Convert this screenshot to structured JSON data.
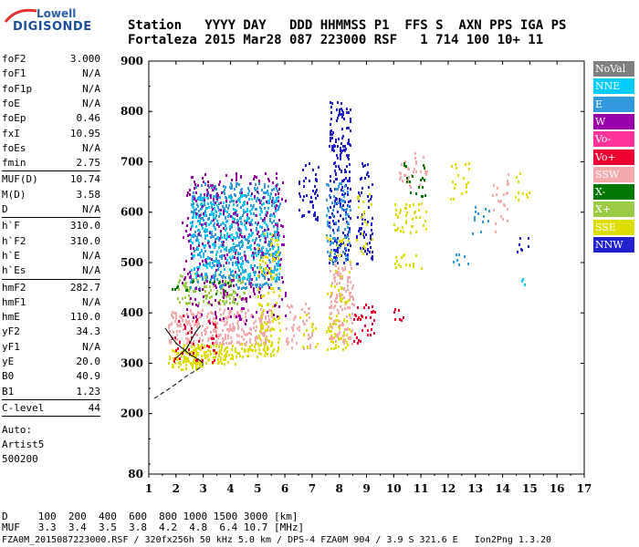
{
  "logo": {
    "line1": "Lowell",
    "line2": "DIGISONDE"
  },
  "header": {
    "row1": "Station   YYYY DAY   DDD HHMMSS P1  FFS S  AXN PPS IGA PS",
    "row2": "Fortaleza 2015 Mar28 087 223000 RSF   1 714 100 10+ 11"
  },
  "params": [
    {
      "k": "foF2",
      "v": "3.000"
    },
    {
      "k": "foF1",
      "v": "N/A"
    },
    {
      "k": "foF1p",
      "v": "N/A"
    },
    {
      "k": "foE",
      "v": "N/A"
    },
    {
      "k": "foEp",
      "v": "0.46"
    },
    {
      "k": "fxI",
      "v": "10.95"
    },
    {
      "k": "foEs",
      "v": "N/A"
    },
    {
      "k": "fmin",
      "v": "2.75"
    },
    {
      "k": "MUF(D)",
      "v": "10.74"
    },
    {
      "k": "M(D)",
      "v": "3.58"
    },
    {
      "k": "D",
      "v": "N/A"
    },
    {
      "k": "h`F",
      "v": "310.0"
    },
    {
      "k": "h`F2",
      "v": "310.0"
    },
    {
      "k": "h`E",
      "v": "N/A"
    },
    {
      "k": "h`Es",
      "v": "N/A"
    },
    {
      "k": "hmF2",
      "v": "282.7"
    },
    {
      "k": "hmF1",
      "v": "N/A"
    },
    {
      "k": "hmE",
      "v": "110.0"
    },
    {
      "k": "yF2",
      "v": "34.3"
    },
    {
      "k": "yF1",
      "v": "N/A"
    },
    {
      "k": "yE",
      "v": "20.0"
    },
    {
      "k": "B0",
      "v": "40.9"
    },
    {
      "k": "B1",
      "v": "1.23"
    },
    {
      "k": "C-level",
      "v": "44"
    }
  ],
  "auto": {
    "l1": "Auto:",
    "l2": "Artist5",
    "l3": "500200"
  },
  "footer": {
    "d_row": "D     100  200  400  600  800 1000 1500 3000 [km]",
    "muf_row": "MUF   3.3  3.4  3.5  3.8  4.2  4.8  6.4 10.7 [MHz]",
    "file_row": "FZA0M_2015087223000.RSF / 320fx256h 50 kHz 5.0 km / DPS-4 FZA0M 904 / 3.9 S 321.6 E   Ion2Png 1.3.20"
  },
  "legend": [
    {
      "label": "NoVal",
      "color": "#808080"
    },
    {
      "label": "NNE",
      "color": "#00ccff"
    },
    {
      "label": "E",
      "color": "#3399dd"
    },
    {
      "label": "W",
      "color": "#9900aa"
    },
    {
      "label": "Vo-",
      "color": "#ff3399"
    },
    {
      "label": "Vo+",
      "color": "#ee0033"
    },
    {
      "label": "SSW",
      "color": "#f4aaaa"
    },
    {
      "label": "X-",
      "color": "#007700"
    },
    {
      "label": "X+",
      "color": "#99cc44"
    },
    {
      "label": "SSE",
      "color": "#dddd00"
    },
    {
      "label": "NNW",
      "color": "#2222cc"
    }
  ],
  "chart_data": {
    "type": "scatter",
    "xlim": [
      1,
      17
    ],
    "ylim": [
      80,
      900
    ],
    "x_ticks": [
      1,
      2,
      3,
      4,
      5,
      6,
      7,
      8,
      9,
      10,
      11,
      12,
      13,
      14,
      15,
      16,
      17
    ],
    "y_ticks": [
      80,
      200,
      300,
      400,
      500,
      600,
      700,
      800,
      900
    ],
    "clusters": [
      {
        "x": [
          1.7,
          3.2
        ],
        "y": [
          290,
          330
        ],
        "color": "#dddd00",
        "density": 5
      },
      {
        "x": [
          2.2,
          4.2
        ],
        "y": [
          300,
          340
        ],
        "color": "#dddd00",
        "density": 5
      },
      {
        "x": [
          4.2,
          5.6
        ],
        "y": [
          315,
          345
        ],
        "color": "#dddd00",
        "density": 4
      },
      {
        "x": [
          1.7,
          5.5
        ],
        "y": [
          340,
          410
        ],
        "color": "#f4aaaa",
        "density": 4
      },
      {
        "x": [
          1.8,
          3.5
        ],
        "y": [
          300,
          400
        ],
        "color": "#ee0033",
        "density": 1
      },
      {
        "x": [
          2.0,
          4.5
        ],
        "y": [
          420,
          480
        ],
        "color": "#99cc44",
        "density": 3
      },
      {
        "x": [
          1.8,
          4.0
        ],
        "y": [
          440,
          470
        ],
        "color": "#007700",
        "density": 1
      },
      {
        "x": [
          2.5,
          5.8
        ],
        "y": [
          450,
          660
        ],
        "color": "#3399dd",
        "density": 3
      },
      {
        "x": [
          2.5,
          5.8
        ],
        "y": [
          470,
          640
        ],
        "color": "#00ccff",
        "density": 2
      },
      {
        "x": [
          2.2,
          6.0
        ],
        "y": [
          380,
          680
        ],
        "color": "#9900aa",
        "density": 1
      },
      {
        "x": [
          5.0,
          5.8
        ],
        "y": [
          320,
          560
        ],
        "color": "#dddd00",
        "density": 2
      },
      {
        "x": [
          6.0,
          7.0
        ],
        "y": [
          330,
          420
        ],
        "color": "#f4aaaa",
        "density": 2
      },
      {
        "x": [
          6.5,
          7.2
        ],
        "y": [
          580,
          700
        ],
        "color": "#2222cc",
        "density": 2
      },
      {
        "x": [
          6.5,
          7.2
        ],
        "y": [
          330,
          400
        ],
        "color": "#dddd00",
        "density": 1
      },
      {
        "x": [
          7.5,
          8.4
        ],
        "y": [
          330,
          400
        ],
        "color": "#dddd00",
        "density": 3
      },
      {
        "x": [
          7.6,
          8.5
        ],
        "y": [
          340,
          500
        ],
        "color": "#f4aaaa",
        "density": 3
      },
      {
        "x": [
          7.6,
          8.4
        ],
        "y": [
          500,
          820
        ],
        "color": "#2222cc",
        "density": 3
      },
      {
        "x": [
          7.5,
          8.4
        ],
        "y": [
          500,
          660
        ],
        "color": "#3399dd",
        "density": 2
      },
      {
        "x": [
          7.5,
          8.4
        ],
        "y": [
          420,
          560
        ],
        "color": "#dddd00",
        "density": 1
      },
      {
        "x": [
          8.5,
          9.3
        ],
        "y": [
          340,
          420
        ],
        "color": "#ee0033",
        "density": 2
      },
      {
        "x": [
          8.6,
          9.2
        ],
        "y": [
          500,
          700
        ],
        "color": "#2222cc",
        "density": 2
      },
      {
        "x": [
          8.6,
          9.2
        ],
        "y": [
          520,
          640
        ],
        "color": "#dddd00",
        "density": 1
      },
      {
        "x": [
          10.0,
          10.6
        ],
        "y": [
          370,
          410
        ],
        "color": "#ee0033",
        "density": 1
      },
      {
        "x": [
          10.0,
          11.0
        ],
        "y": [
          490,
          520
        ],
        "color": "#dddd00",
        "density": 2
      },
      {
        "x": [
          10.0,
          11.2
        ],
        "y": [
          560,
          620
        ],
        "color": "#dddd00",
        "density": 2
      },
      {
        "x": [
          10.2,
          11.2
        ],
        "y": [
          650,
          720
        ],
        "color": "#f4aaaa",
        "density": 2
      },
      {
        "x": [
          10.2,
          11.2
        ],
        "y": [
          630,
          700
        ],
        "color": "#007700",
        "density": 1
      },
      {
        "x": [
          12.0,
          12.8
        ],
        "y": [
          490,
          520
        ],
        "color": "#3399dd",
        "density": 1
      },
      {
        "x": [
          12.0,
          12.8
        ],
        "y": [
          620,
          700
        ],
        "color": "#dddd00",
        "density": 1
      },
      {
        "x": [
          12.8,
          13.5
        ],
        "y": [
          560,
          620
        ],
        "color": "#3399dd",
        "density": 1
      },
      {
        "x": [
          13.5,
          14.2
        ],
        "y": [
          560,
          680
        ],
        "color": "#f4aaaa",
        "density": 1
      },
      {
        "x": [
          14.4,
          15.0
        ],
        "y": [
          520,
          560
        ],
        "color": "#2222cc",
        "density": 1
      },
      {
        "x": [
          14.4,
          15.0
        ],
        "y": [
          450,
          470
        ],
        "color": "#00ccff",
        "density": 1
      },
      {
        "x": [
          14.4,
          15.0
        ],
        "y": [
          620,
          680
        ],
        "color": "#dddd00",
        "density": 1
      }
    ]
  }
}
